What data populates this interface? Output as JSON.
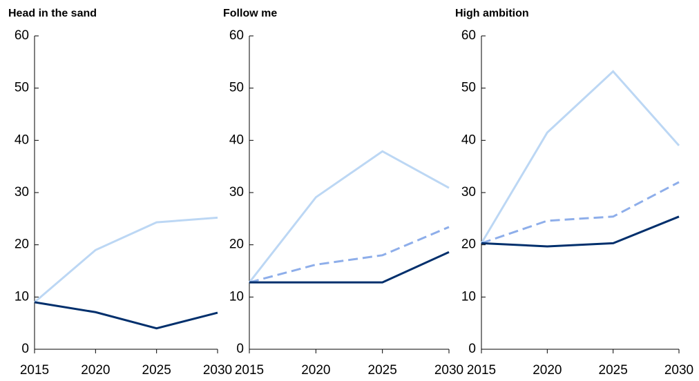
{
  "chart_data": [
    {
      "type": "line",
      "title": "Head in the sand",
      "x": [
        2015,
        2020,
        2025,
        2030
      ],
      "xlim": [
        2015,
        2030
      ],
      "xticks": [
        2015,
        2020,
        2025,
        2030
      ],
      "ylim": [
        0,
        60
      ],
      "yticks": [
        0,
        10,
        20,
        30,
        40,
        50,
        60
      ],
      "series": [
        {
          "color": "#bcd7f4",
          "dashed": false,
          "values": [
            9.0,
            19.0,
            24.3,
            25.2
          ]
        },
        {
          "color": "#002f6c",
          "dashed": false,
          "values": [
            9.0,
            7.1,
            4.0,
            7.0
          ]
        }
      ]
    },
    {
      "type": "line",
      "title": "Follow me",
      "x": [
        2015,
        2020,
        2025,
        2030
      ],
      "xlim": [
        2015,
        2030
      ],
      "xticks": [
        2015,
        2020,
        2025,
        2030
      ],
      "ylim": [
        0,
        60
      ],
      "yticks": [
        0,
        10,
        20,
        30,
        40,
        50,
        60
      ],
      "series": [
        {
          "color": "#bcd7f4",
          "dashed": false,
          "values": [
            12.8,
            29.1,
            37.9,
            30.9
          ]
        },
        {
          "color": "#8eaeea",
          "dashed": true,
          "values": [
            12.8,
            16.2,
            18.0,
            23.4
          ]
        },
        {
          "color": "#002f6c",
          "dashed": false,
          "values": [
            12.8,
            12.8,
            12.8,
            18.6
          ]
        }
      ]
    },
    {
      "type": "line",
      "title": "High ambition",
      "x": [
        2015,
        2020,
        2025,
        2030
      ],
      "xlim": [
        2015,
        2030
      ],
      "xticks": [
        2015,
        2020,
        2025,
        2030
      ],
      "ylim": [
        0,
        60
      ],
      "yticks": [
        0,
        10,
        20,
        30,
        40,
        50,
        60
      ],
      "series": [
        {
          "color": "#bcd7f4",
          "dashed": false,
          "values": [
            20.3,
            41.5,
            53.2,
            39.0
          ]
        },
        {
          "color": "#8eaeea",
          "dashed": true,
          "values": [
            20.3,
            24.6,
            25.4,
            32.0
          ]
        },
        {
          "color": "#002f6c",
          "dashed": false,
          "values": [
            20.3,
            19.7,
            20.3,
            25.4
          ]
        }
      ]
    }
  ]
}
